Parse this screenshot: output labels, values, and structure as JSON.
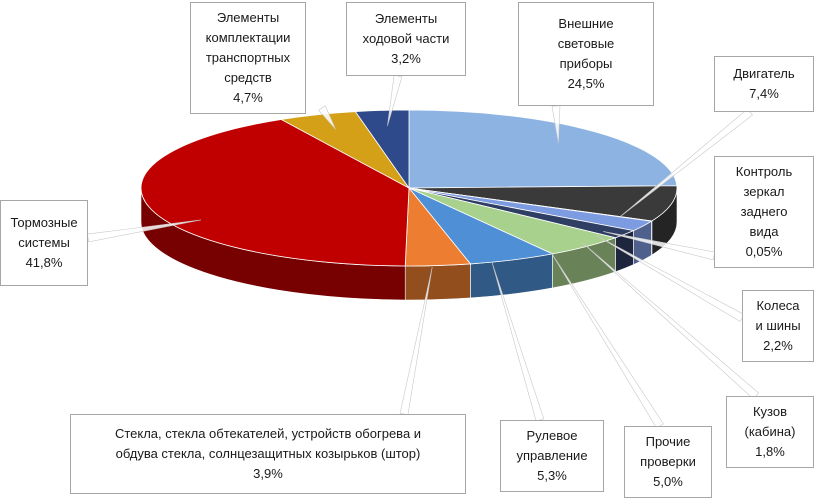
{
  "chart_data": {
    "type": "pie",
    "title": "",
    "slices": [
      {
        "label": "Внешние световые приборы",
        "value": 24.5,
        "display": "24,5%",
        "color": "#8db3e2"
      },
      {
        "label": "Двигатель",
        "value": 7.4,
        "display": "7,4%",
        "color": "#3a3a3a"
      },
      {
        "label": "Контроль зеркал заднего вида",
        "value": 0.05,
        "display": "0,05%",
        "color": "#b3b3b3"
      },
      {
        "label": "Колеса и шины",
        "value": 2.2,
        "display": "2,2%",
        "color": "#7d9be0"
      },
      {
        "label": "Кузов (кабина)",
        "value": 1.8,
        "display": "1,8%",
        "color": "#2f3e63"
      },
      {
        "label": "Прочие проверки",
        "value": 5.0,
        "display": "5,0%",
        "color": "#a9d18e"
      },
      {
        "label": "Рулевое управление",
        "value": 5.3,
        "display": "5,3%",
        "color": "#4f8fd6"
      },
      {
        "label": "Стекла, стекла обтекателей, устройств обогрева и обдува стекла, солнцезащитных козырьков (штор)",
        "value": 3.9,
        "display": "3,9%",
        "color": "#ed7d31"
      },
      {
        "label": "Тормозные системы",
        "value": 41.8,
        "display": "41,8%",
        "color": "#c00000"
      },
      {
        "label": "Элементы комплектации транспортных средств",
        "value": 4.7,
        "display": "4,7%",
        "color": "#d4a017"
      },
      {
        "label": "Элементы ходовой части",
        "value": 3.2,
        "display": "3,2%",
        "color": "#2e4a8a"
      }
    ]
  },
  "callouts": [
    {
      "lines": [
        "Внешние",
        "световые",
        "приборы"
      ],
      "value": "24,5%"
    },
    {
      "lines": [
        "Двигатель"
      ],
      "value": "7,4%"
    },
    {
      "lines": [
        "Контроль",
        "зеркал",
        "заднего",
        "вида"
      ],
      "value": "0,05%"
    },
    {
      "lines": [
        "Колеса",
        "и шины"
      ],
      "value": "2,2%"
    },
    {
      "lines": [
        "Кузов",
        "(кабина)"
      ],
      "value": "1,8%"
    },
    {
      "lines": [
        "Прочие",
        "проверки"
      ],
      "value": "5,0%"
    },
    {
      "lines": [
        "Рулевое",
        "управление"
      ],
      "value": "5,3%"
    },
    {
      "lines": [
        "Стекла, стекла обтекателей,  устройств обогрева и",
        "обдува стекла, солнцезащитных козырьков (штор)"
      ],
      "value": "3,9%"
    },
    {
      "lines": [
        "Тормозные",
        "системы"
      ],
      "value": "41,8%"
    },
    {
      "lines": [
        "Элементы",
        "комплектации",
        "транспортных",
        "средств"
      ],
      "value": "4,7%"
    },
    {
      "lines": [
        "Элементы",
        "ходовой части"
      ],
      "value": "3,2%"
    }
  ]
}
